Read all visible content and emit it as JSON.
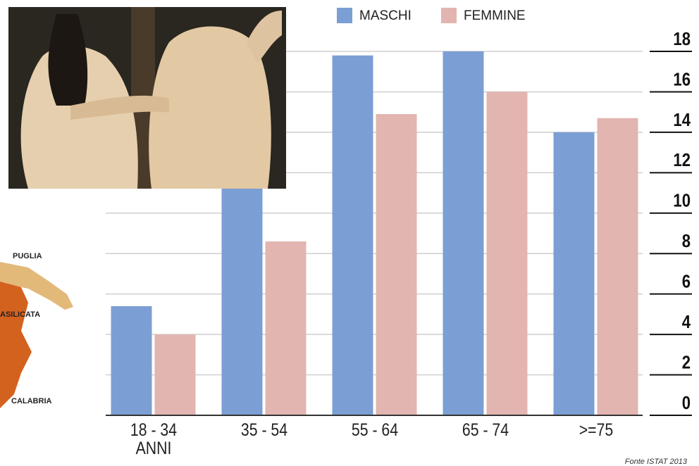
{
  "chart_data": {
    "type": "bar",
    "categories": [
      "18 - 34 ANNI",
      "35 - 54",
      "55 - 64",
      "65 - 74",
      ">=75"
    ],
    "series": [
      {
        "name": "MASCHI",
        "color": "#7b9fd4",
        "values": [
          5.4,
          12.0,
          17.8,
          18.0,
          14.0
        ]
      },
      {
        "name": "FEMMINE",
        "color": "#e3b5b0",
        "values": [
          4.0,
          8.6,
          14.9,
          16.0,
          14.7
        ]
      }
    ],
    "ylim": [
      0,
      18
    ],
    "yticks": [
      0,
      2,
      4,
      6,
      8,
      10,
      12,
      14,
      16,
      18
    ],
    "grid": true,
    "legend": "top",
    "source": "Fonte ISTAT 2013"
  },
  "map_labels": [
    "PUGLIA",
    "ASILICATA",
    "CALABRIA"
  ]
}
